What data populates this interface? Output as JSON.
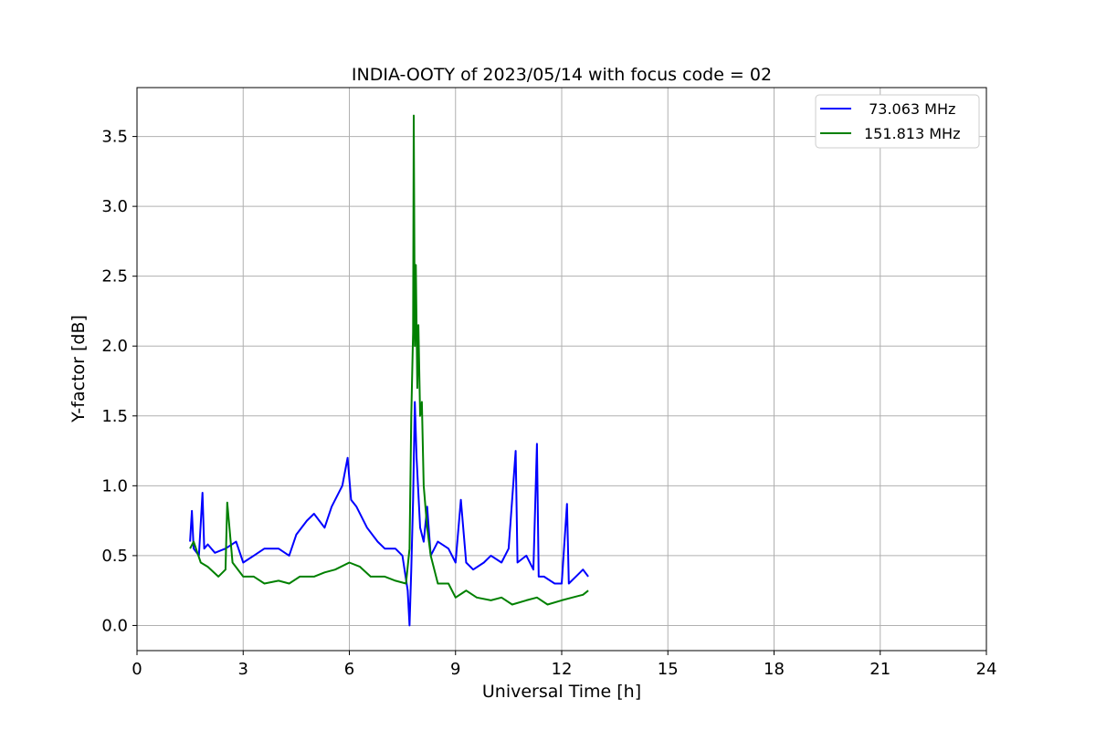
{
  "chart_data": {
    "type": "line",
    "title": "INDIA-OOTY of 2023/05/14 with focus code = 02",
    "xlabel": "Universal Time [h]",
    "ylabel": "Y-factor [dB]",
    "xlim": [
      0,
      24
    ],
    "ylim": [
      -0.18,
      3.85
    ],
    "xticks": [
      0,
      3,
      6,
      9,
      12,
      15,
      18,
      21,
      24
    ],
    "xtick_labels": [
      "0",
      "3",
      "6",
      "9",
      "12",
      "15",
      "18",
      "21",
      "24"
    ],
    "yticks": [
      0.0,
      0.5,
      1.0,
      1.5,
      2.0,
      2.5,
      3.0,
      3.5
    ],
    "ytick_labels": [
      "0.0",
      "0.5",
      "1.0",
      "1.5",
      "2.0",
      "2.5",
      "3.0",
      "3.5"
    ],
    "grid": true,
    "legend_position": "top-right",
    "series": [
      {
        "name": " 73.063 MHz",
        "color": "#0000ff",
        "x": [
          1.5,
          1.55,
          1.6,
          1.75,
          1.85,
          1.9,
          2.0,
          2.2,
          2.5,
          2.8,
          3.0,
          3.3,
          3.6,
          4.0,
          4.3,
          4.5,
          4.8,
          5.0,
          5.3,
          5.5,
          5.8,
          5.95,
          6.05,
          6.2,
          6.5,
          6.8,
          7.0,
          7.3,
          7.5,
          7.65,
          7.7,
          7.75,
          7.8,
          7.85,
          7.9,
          8.0,
          8.1,
          8.2,
          8.3,
          8.5,
          8.8,
          9.0,
          9.15,
          9.3,
          9.5,
          9.8,
          10.0,
          10.3,
          10.5,
          10.7,
          10.75,
          11.0,
          11.2,
          11.3,
          11.35,
          11.5,
          11.8,
          12.0,
          12.15,
          12.2,
          12.4,
          12.6,
          12.75
        ],
        "y": [
          0.6,
          0.82,
          0.55,
          0.5,
          0.95,
          0.55,
          0.58,
          0.52,
          0.55,
          0.6,
          0.45,
          0.5,
          0.55,
          0.55,
          0.5,
          0.65,
          0.75,
          0.8,
          0.7,
          0.85,
          1.0,
          1.2,
          0.9,
          0.85,
          0.7,
          0.6,
          0.55,
          0.55,
          0.5,
          0.25,
          0.0,
          0.4,
          0.9,
          1.6,
          1.2,
          0.7,
          0.6,
          0.85,
          0.5,
          0.6,
          0.55,
          0.45,
          0.9,
          0.45,
          0.4,
          0.45,
          0.5,
          0.45,
          0.55,
          1.25,
          0.45,
          0.5,
          0.4,
          1.3,
          0.35,
          0.35,
          0.3,
          0.3,
          0.87,
          0.3,
          0.35,
          0.4,
          0.35
        ]
      },
      {
        "name": "151.813 MHz",
        "color": "#008000",
        "x": [
          1.5,
          1.6,
          1.8,
          2.0,
          2.3,
          2.5,
          2.55,
          2.7,
          3.0,
          3.3,
          3.6,
          4.0,
          4.3,
          4.6,
          5.0,
          5.3,
          5.6,
          6.0,
          6.3,
          6.6,
          7.0,
          7.3,
          7.6,
          7.7,
          7.75,
          7.8,
          7.82,
          7.85,
          7.88,
          7.92,
          7.95,
          8.0,
          8.05,
          8.1,
          8.2,
          8.3,
          8.5,
          8.8,
          9.0,
          9.3,
          9.6,
          10.0,
          10.3,
          10.6,
          11.0,
          11.3,
          11.6,
          12.0,
          12.3,
          12.6,
          12.75
        ],
        "y": [
          0.55,
          0.6,
          0.45,
          0.42,
          0.35,
          0.4,
          0.88,
          0.45,
          0.35,
          0.35,
          0.3,
          0.32,
          0.3,
          0.35,
          0.35,
          0.38,
          0.4,
          0.45,
          0.42,
          0.35,
          0.35,
          0.32,
          0.3,
          0.55,
          1.5,
          2.1,
          3.65,
          2.0,
          2.58,
          1.7,
          2.15,
          1.5,
          1.6,
          1.0,
          0.7,
          0.5,
          0.3,
          0.3,
          0.2,
          0.25,
          0.2,
          0.18,
          0.2,
          0.15,
          0.18,
          0.2,
          0.15,
          0.18,
          0.2,
          0.22,
          0.25
        ]
      }
    ]
  }
}
